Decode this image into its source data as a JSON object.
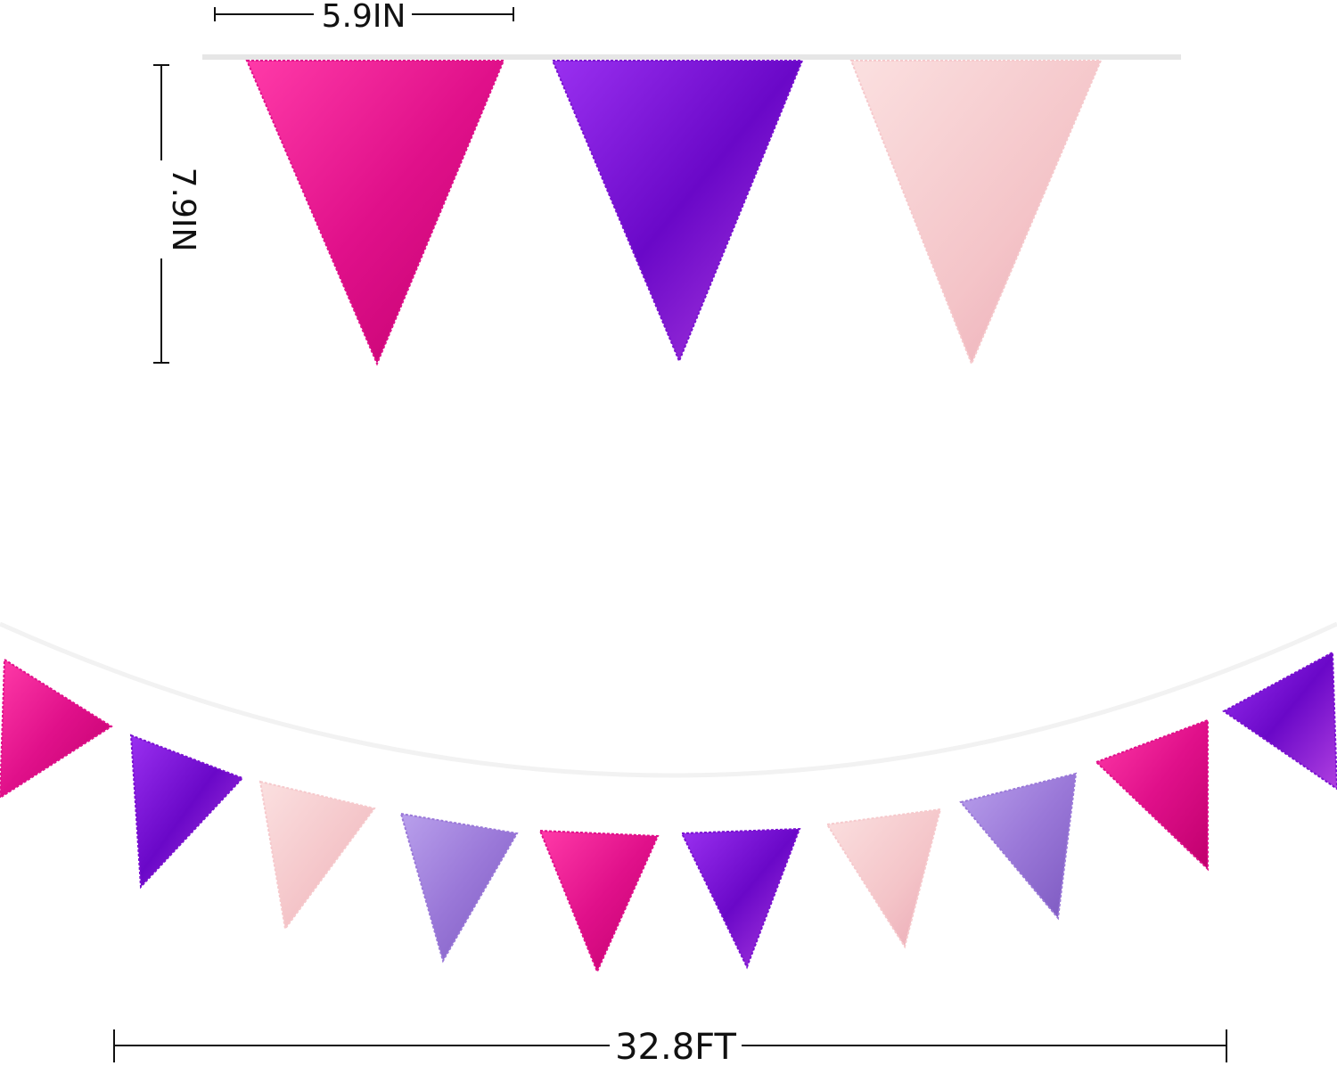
{
  "dimensions": {
    "flag_width": "5.9IN",
    "flag_height": "7.9IN",
    "total_length": "32.8FT"
  },
  "colors": {
    "hot_pink": "#e0108a",
    "purple": "#7a10d0",
    "light_pink": "#f6c9cc",
    "lavender": "#9a78d8",
    "string": "#e6e6e6"
  },
  "closeup_flags": [
    "hot_pink",
    "purple",
    "light_pink"
  ],
  "banner_flags": [
    "hot_pink",
    "purple",
    "light_pink",
    "lavender",
    "hot_pink",
    "purple",
    "light_pink",
    "lavender",
    "hot_pink",
    "purple"
  ]
}
